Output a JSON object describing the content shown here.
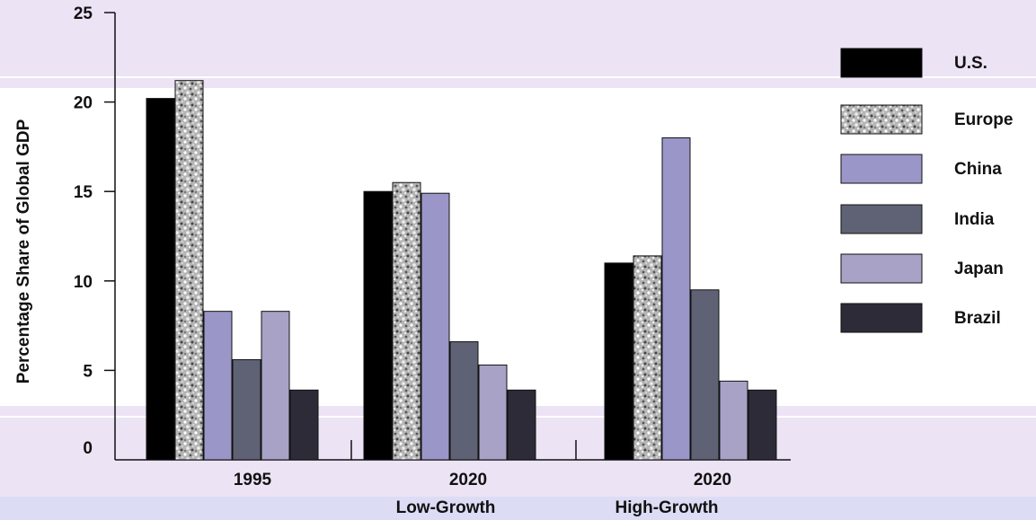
{
  "chart_data": {
    "type": "bar",
    "title": "",
    "xlabel": "",
    "ylabel": "Percentage Share of Global GDP",
    "ylim": [
      0,
      25
    ],
    "yticks": [
      "0",
      "5",
      "10",
      "15",
      "20",
      "25"
    ],
    "categories": [
      {
        "line1": "1995",
        "line2": ""
      },
      {
        "line1": "2020",
        "line2": "Low-Growth"
      },
      {
        "line1": "2020",
        "line2": "High-Growth"
      }
    ],
    "series": [
      {
        "name": "U.S.",
        "values": [
          20.2,
          15.0,
          11.0
        ],
        "color": "#000000",
        "pattern": "solid"
      },
      {
        "name": "Europe",
        "values": [
          21.2,
          15.5,
          11.4
        ],
        "color": "#9a9a9a",
        "pattern": "speckle"
      },
      {
        "name": "China",
        "values": [
          8.3,
          14.9,
          18.0
        ],
        "color": "#9b96c8",
        "pattern": "solid"
      },
      {
        "name": "India",
        "values": [
          5.6,
          6.6,
          9.5
        ],
        "color": "#5f6275",
        "pattern": "solid"
      },
      {
        "name": "Japan",
        "values": [
          8.3,
          5.3,
          4.4
        ],
        "color": "#a7a2c6",
        "pattern": "solid"
      },
      {
        "name": "Brazil",
        "values": [
          3.9,
          3.9,
          3.9
        ],
        "color": "#2d2b38",
        "pattern": "solid"
      }
    ],
    "legend": {
      "placement": "right"
    },
    "grid": false,
    "background_bands": {
      "color": "#ece3f5",
      "bottom_color": "#dcdcf5"
    }
  }
}
